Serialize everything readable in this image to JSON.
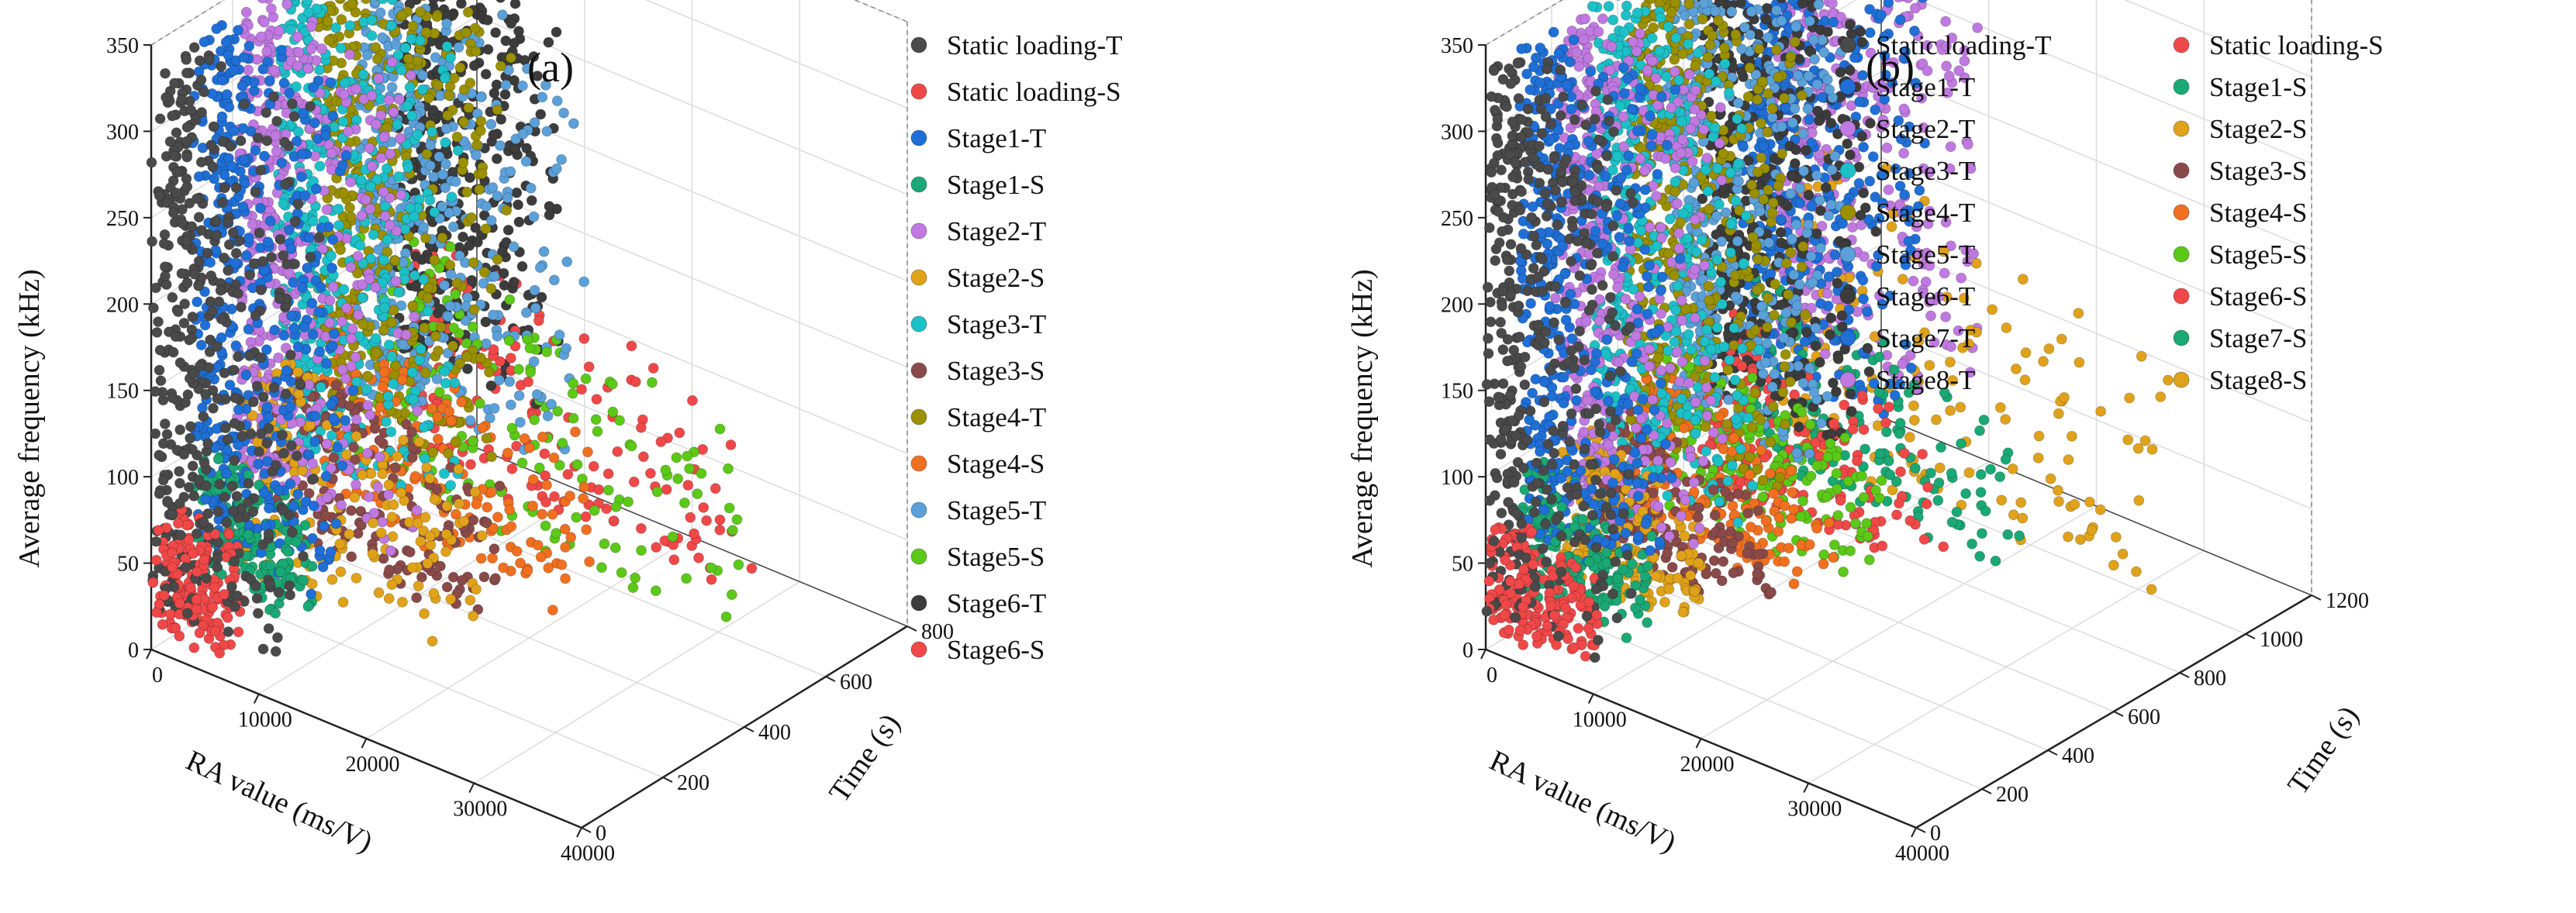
{
  "chart_data": [
    {
      "type": "scatter",
      "panel_label": "(a)",
      "xlabel": "RA value (ms/V)",
      "ylabel": "Time (s)",
      "zlabel": "Average frequency (kHz)",
      "xlim": [
        0,
        40000
      ],
      "ylim": [
        0,
        800
      ],
      "zlim": [
        0,
        350
      ],
      "xticks": [
        "0",
        "10000",
        "20000",
        "30000",
        "40000"
      ],
      "yticks": [
        "0",
        "200",
        "400",
        "600",
        "800"
      ],
      "zticks": [
        "0",
        "50",
        "100",
        "150",
        "200",
        "250",
        "300",
        "350"
      ],
      "legend_position": "right",
      "series": [
        {
          "name": "Static loading-T",
          "color": "#4a4a4a",
          "time": [
            0,
            100
          ],
          "ra": [
            0,
            12000
          ],
          "af": [
            20,
            335
          ]
        },
        {
          "name": "Static loading-S",
          "color": "#f04848",
          "time": [
            0,
            100
          ],
          "ra": [
            0,
            6000
          ],
          "af": [
            10,
            80
          ]
        },
        {
          "name": "Stage1-T",
          "color": "#1f6fd6",
          "time": [
            100,
            200
          ],
          "ra": [
            0,
            12000
          ],
          "af": [
            45,
            335
          ]
        },
        {
          "name": "Stage1-S",
          "color": "#1aa874",
          "time": [
            100,
            200
          ],
          "ra": [
            0,
            9000
          ],
          "af": [
            25,
            100
          ]
        },
        {
          "name": "Stage2-T",
          "color": "#c079e0",
          "time": [
            200,
            300
          ],
          "ra": [
            0,
            14000
          ],
          "af": [
            55,
            340
          ]
        },
        {
          "name": "Stage2-S",
          "color": "#e0a21a",
          "time": [
            200,
            300
          ],
          "ra": [
            0,
            22000
          ],
          "af": [
            20,
            140
          ]
        },
        {
          "name": "Stage3-T",
          "color": "#1ec0c8",
          "time": [
            300,
            400
          ],
          "ra": [
            0,
            14000
          ],
          "af": [
            65,
            340
          ]
        },
        {
          "name": "Stage3-S",
          "color": "#8a4a4a",
          "time": [
            300,
            400
          ],
          "ra": [
            0,
            18000
          ],
          "af": [
            20,
            120
          ]
        },
        {
          "name": "Stage4-T",
          "color": "#9a9000",
          "time": [
            400,
            500
          ],
          "ra": [
            0,
            15000
          ],
          "af": [
            70,
            340
          ]
        },
        {
          "name": "Stage4-S",
          "color": "#f07020",
          "time": [
            400,
            500
          ],
          "ra": [
            0,
            24000
          ],
          "af": [
            20,
            140
          ]
        },
        {
          "name": "Stage5-T",
          "color": "#5ba0d8",
          "time": [
            500,
            600
          ],
          "ra": [
            0,
            18000
          ],
          "af": [
            75,
            300
          ]
        },
        {
          "name": "Stage5-S",
          "color": "#5cc818",
          "time": [
            500,
            600
          ],
          "ra": [
            0,
            34000
          ],
          "af": [
            20,
            170
          ]
        },
        {
          "name": "Stage6-T",
          "color": "#3c3c3c",
          "time": [
            600,
            700
          ],
          "ra": [
            0,
            12000
          ],
          "af": [
            80,
            300
          ]
        },
        {
          "name": "Stage6-S",
          "color": "#f04848",
          "time": [
            600,
            700
          ],
          "ra": [
            0,
            30000
          ],
          "af": [
            20,
            150
          ]
        }
      ]
    },
    {
      "type": "scatter",
      "panel_label": "(b)",
      "xlabel": "RA value (ms/V)",
      "ylabel": "Time (s)",
      "zlabel": "Average frequency (kHz)",
      "xlim": [
        0,
        40000
      ],
      "ylim": [
        0,
        1200
      ],
      "zlim": [
        0,
        350
      ],
      "xticks": [
        "0",
        "10000",
        "20000",
        "30000",
        "40000"
      ],
      "yticks": [
        "0",
        "200",
        "400",
        "600",
        "800",
        "1000",
        "1200"
      ],
      "zticks": [
        "0",
        "50",
        "100",
        "150",
        "200",
        "250",
        "300",
        "350"
      ],
      "legend_position": "right",
      "series": [
        {
          "name": "Static loading-T",
          "color": "#4a4a4a",
          "time": [
            0,
            100
          ],
          "ra": [
            0,
            12000
          ],
          "af": [
            20,
            335
          ]
        },
        {
          "name": "Stage1-T",
          "color": "#1f6fd6",
          "time": [
            100,
            210
          ],
          "ra": [
            0,
            12000
          ],
          "af": [
            50,
            335
          ]
        },
        {
          "name": "Stage2-T",
          "color": "#c079e0",
          "time": [
            210,
            320
          ],
          "ra": [
            0,
            13000
          ],
          "af": [
            55,
            335
          ]
        },
        {
          "name": "Stage3-T",
          "color": "#1ec0c8",
          "time": [
            320,
            430
          ],
          "ra": [
            0,
            13000
          ],
          "af": [
            60,
            330
          ]
        },
        {
          "name": "Stage4-T",
          "color": "#9a9000",
          "time": [
            430,
            540
          ],
          "ra": [
            0,
            14000
          ],
          "af": [
            65,
            330
          ]
        },
        {
          "name": "Stage5-T",
          "color": "#5ba0d8",
          "time": [
            540,
            650
          ],
          "ra": [
            0,
            14000
          ],
          "af": [
            70,
            330
          ]
        },
        {
          "name": "Stage6-T",
          "color": "#3c3c3c",
          "time": [
            650,
            760
          ],
          "ra": [
            0,
            14000
          ],
          "af": [
            70,
            320
          ]
        },
        {
          "name": "Stage7-T",
          "color": "#1f6fd6",
          "time": [
            760,
            870
          ],
          "ra": [
            0,
            15000
          ],
          "af": [
            75,
            320
          ]
        },
        {
          "name": "Stage8-T",
          "color": "#c079e0",
          "time": [
            870,
            980
          ],
          "ra": [
            0,
            16000
          ],
          "af": [
            80,
            320
          ]
        },
        {
          "name": "Static loading-S",
          "color": "#f04848",
          "time": [
            0,
            100
          ],
          "ra": [
            0,
            8000
          ],
          "af": [
            10,
            70
          ]
        },
        {
          "name": "Stage1-S",
          "color": "#1aa874",
          "time": [
            100,
            210
          ],
          "ra": [
            0,
            10000
          ],
          "af": [
            20,
            90
          ]
        },
        {
          "name": "Stage2-S",
          "color": "#e0a21a",
          "time": [
            210,
            320
          ],
          "ra": [
            0,
            12000
          ],
          "af": [
            20,
            100
          ]
        },
        {
          "name": "Stage3-S",
          "color": "#8a4a4a",
          "time": [
            320,
            430
          ],
          "ra": [
            0,
            14000
          ],
          "af": [
            20,
            100
          ]
        },
        {
          "name": "Stage4-S",
          "color": "#f07020",
          "time": [
            430,
            540
          ],
          "ra": [
            0,
            16000
          ],
          "af": [
            20,
            110
          ]
        },
        {
          "name": "Stage5-S",
          "color": "#5cc818",
          "time": [
            540,
            650
          ],
          "ra": [
            0,
            18000
          ],
          "af": [
            20,
            110
          ]
        },
        {
          "name": "Stage6-S",
          "color": "#f04848",
          "time": [
            650,
            760
          ],
          "ra": [
            0,
            20000
          ],
          "af": [
            20,
            120
          ]
        },
        {
          "name": "Stage7-S",
          "color": "#1aa874",
          "time": [
            760,
            870
          ],
          "ra": [
            0,
            24000
          ],
          "af": [
            20,
            130
          ]
        },
        {
          "name": "Stage8-S",
          "color": "#e0a21a",
          "time": [
            870,
            980
          ],
          "ra": [
            0,
            36000
          ],
          "af": [
            20,
            200
          ]
        }
      ]
    }
  ]
}
